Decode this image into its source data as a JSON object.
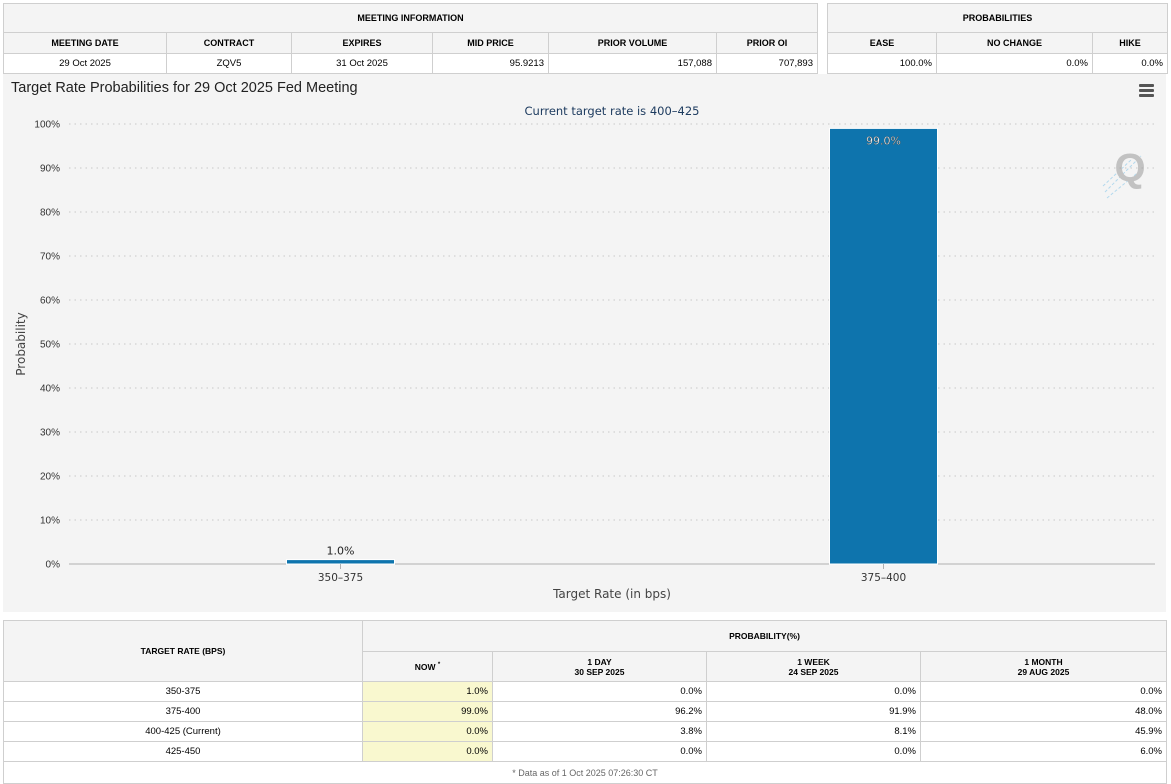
{
  "meeting_info": {
    "title": "MEETING INFORMATION",
    "columns": [
      "MEETING DATE",
      "CONTRACT",
      "EXPIRES",
      "MID PRICE",
      "PRIOR VOLUME",
      "PRIOR OI"
    ],
    "row": [
      "29 Oct 2025",
      "ZQV5",
      "31 Oct 2025",
      "95.9213",
      "157,088",
      "707,893"
    ]
  },
  "probabilities": {
    "title": "PROBABILITIES",
    "columns": [
      "EASE",
      "NO CHANGE",
      "HIKE"
    ],
    "row": [
      "100.0%",
      "0.0%",
      "0.0%"
    ]
  },
  "chart_data": {
    "type": "bar",
    "title": "Target Rate Probabilities for 29 Oct 2025 Fed Meeting",
    "subtitle": "Current target rate is 400–425",
    "xlabel": "Target Rate (in bps)",
    "ylabel": "Probability",
    "categories": [
      "350–375",
      "375–400"
    ],
    "values": [
      1.0,
      99.0
    ],
    "data_labels": [
      "1.0%",
      "99.0%"
    ],
    "ylim": [
      0,
      100
    ],
    "yticks": [
      "0%",
      "10%",
      "20%",
      "30%",
      "40%",
      "50%",
      "60%",
      "70%",
      "80%",
      "90%",
      "100%"
    ],
    "grid": true,
    "bar_color": "#0e74ad",
    "watermark": "Q"
  },
  "target_table": {
    "header_rate": "TARGET RATE (BPS)",
    "header_prob": "PROBABILITY(%)",
    "now_label": "NOW",
    "now_mark": "*",
    "periods": [
      {
        "label": "1 DAY",
        "date": "30 SEP 2025"
      },
      {
        "label": "1 WEEK",
        "date": "24 SEP 2025"
      },
      {
        "label": "1 MONTH",
        "date": "29 AUG 2025"
      }
    ],
    "rows": [
      {
        "rate": "350-375",
        "now": "1.0%",
        "d1": "0.0%",
        "w1": "0.0%",
        "m1": "0.0%"
      },
      {
        "rate": "375-400",
        "now": "99.0%",
        "d1": "96.2%",
        "w1": "91.9%",
        "m1": "48.0%"
      },
      {
        "rate": "400-425 (Current)",
        "now": "0.0%",
        "d1": "3.8%",
        "w1": "8.1%",
        "m1": "45.9%"
      },
      {
        "rate": "425-450",
        "now": "0.0%",
        "d1": "0.0%",
        "w1": "0.0%",
        "m1": "6.0%"
      }
    ],
    "footnote": "* Data as of 1 Oct 2025 07:26:30 CT"
  }
}
